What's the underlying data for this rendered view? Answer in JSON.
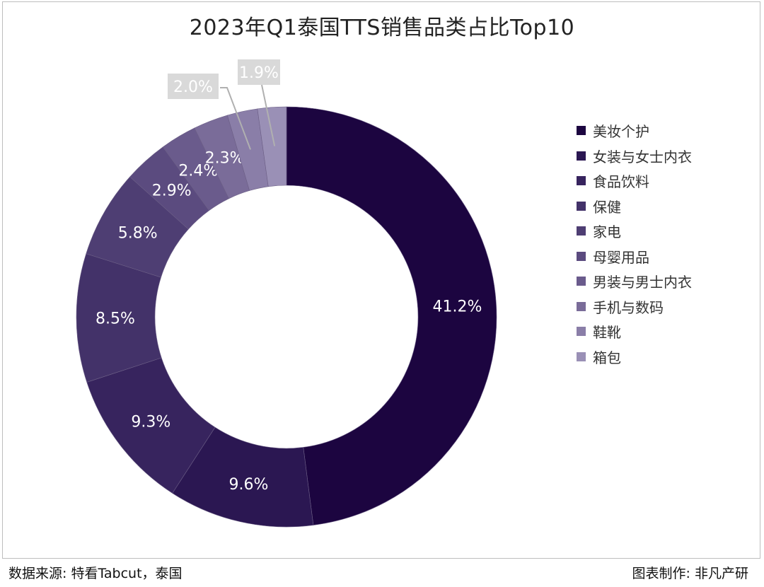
{
  "chart_data": {
    "type": "pie",
    "title": "2023年Q1泰国TTS销售品类占比Top10",
    "categories": [
      "美妆个护",
      "女装与女士内衣",
      "食品饮料",
      "保健",
      "家电",
      "母婴用品",
      "男装与男士内衣",
      "手机与数码",
      "鞋靴",
      "箱包"
    ],
    "values": [
      41.2,
      9.6,
      9.3,
      8.5,
      5.8,
      2.9,
      2.4,
      2.3,
      2.0,
      1.9
    ],
    "labels": [
      "41.2%",
      "9.6%",
      "9.3%",
      "8.5%",
      "5.8%",
      "2.9%",
      "2.4%",
      "2.3%",
      "2.0%",
      "1.9%"
    ],
    "colors": [
      "#1c0540",
      "#2b1752",
      "#37245e",
      "#433269",
      "#4e3e73",
      "#5b4b7f",
      "#6a5b8c",
      "#7a6c99",
      "#8a7ea8",
      "#9a90b6"
    ],
    "donut": true,
    "legend_position": "right"
  },
  "footer": {
    "source": "数据来源: 特看Tabcut，泰国",
    "credit": "图表制作: 非凡产研"
  }
}
